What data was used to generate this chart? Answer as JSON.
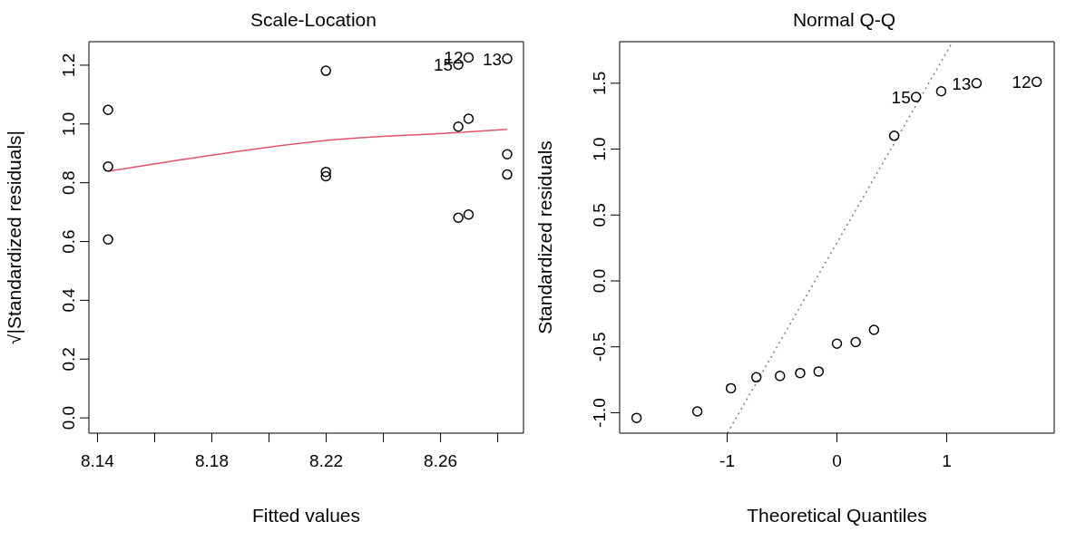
{
  "chart_data": [
    {
      "type": "scatter",
      "title": "Scale-Location",
      "xlabel": "Fitted values",
      "ylabel": "√|Standardized residuals|",
      "xlim": [
        8.137,
        8.289
      ],
      "ylim": [
        -0.052,
        1.28
      ],
      "xticks": [
        {
          "value": 8.14,
          "label": "8.14"
        },
        {
          "value": 8.16,
          "label": null
        },
        {
          "value": 8.18,
          "label": "8.18"
        },
        {
          "value": 8.2,
          "label": null
        },
        {
          "value": 8.22,
          "label": "8.22"
        },
        {
          "value": 8.24,
          "label": null
        },
        {
          "value": 8.26,
          "label": "8.26"
        },
        {
          "value": 8.28,
          "label": null
        }
      ],
      "yticks": [
        {
          "value": 0,
          "label": "0.0"
        },
        {
          "value": 0.2,
          "label": "0.2"
        },
        {
          "value": 0.4,
          "label": "0.4"
        },
        {
          "value": 0.6,
          "label": "0.6"
        },
        {
          "value": 0.8,
          "label": "0.8"
        },
        {
          "value": 1,
          "label": "1.0"
        },
        {
          "value": 1.2,
          "label": "1.2"
        }
      ],
      "series": [
        {
          "marker": "circle",
          "color": "#000000",
          "x": [
            8.1437,
            8.1437,
            8.1437,
            8.2199,
            8.2199,
            8.2199,
            8.2662,
            8.2698,
            8.2833,
            8.2662,
            8.2698,
            8.2662,
            8.2698,
            8.2833,
            8.2833
          ],
          "values": [
            1.048,
            0.855,
            0.607,
            1.181,
            0.837,
            0.822,
            1.202,
            1.226,
            1.222,
            0.991,
            1.018,
            0.681,
            0.692,
            0.897,
            0.828
          ]
        },
        {
          "type": "line",
          "marker": "none",
          "color": "#df536b",
          "line_style": "solid",
          "x": [
            8.1437,
            8.18,
            8.2199,
            8.2662,
            8.2833
          ],
          "values": [
            0.839,
            0.894,
            0.944,
            0.971,
            0.982
          ]
        }
      ],
      "annotations": [
        {
          "text": "12",
          "x": 8.2698,
          "y": 1.226
        },
        {
          "text": "13",
          "x": 8.2833,
          "y": 1.222
        },
        {
          "text": "15",
          "x": 8.2662,
          "y": 1.202
        }
      ]
    },
    {
      "type": "scatter",
      "title": "Normal Q-Q",
      "xlabel": "Theoretical Quantiles",
      "ylabel": "Standardized residuals",
      "xlim": [
        -1.98,
        1.98
      ],
      "ylim": [
        -1.155,
        1.815
      ],
      "xticks": [
        -1,
        0,
        1
      ],
      "yticks": [
        {
          "value": -1,
          "label": "-1.0"
        },
        {
          "value": -0.5,
          "label": "-0.5"
        },
        {
          "value": 0,
          "label": "0.0"
        },
        {
          "value": 0.5,
          "label": "0.5"
        },
        {
          "value": 1,
          "label": "1.0"
        },
        {
          "value": 1.5,
          "label": "1.5"
        }
      ],
      "series": [
        {
          "marker": "circle",
          "color": "#000000",
          "x": [
            -1.826,
            -1.272,
            -0.966,
            -0.734,
            -0.519,
            -0.335,
            -0.167,
            0,
            0.171,
            0.338,
            0.522,
            0.721,
            0.95,
            1.272,
            1.82
          ],
          "values": [
            -1.039,
            -0.99,
            -0.814,
            -0.731,
            -0.721,
            -0.699,
            -0.687,
            -0.476,
            -0.464,
            -0.371,
            1.101,
            1.395,
            1.439,
            1.5,
            1.51
          ]
        },
        {
          "type": "line",
          "marker": "none",
          "color": "#808080",
          "line_style": "dotted",
          "x": [
            -0.998,
            1.053
          ],
          "values": [
            -1.154,
            1.813
          ]
        }
      ],
      "annotations": [
        {
          "text": "15",
          "x": 0.721,
          "y": 1.395
        },
        {
          "text": "13",
          "x": 1.272,
          "y": 1.5
        },
        {
          "text": "12",
          "x": 1.82,
          "y": 1.51
        }
      ]
    }
  ]
}
